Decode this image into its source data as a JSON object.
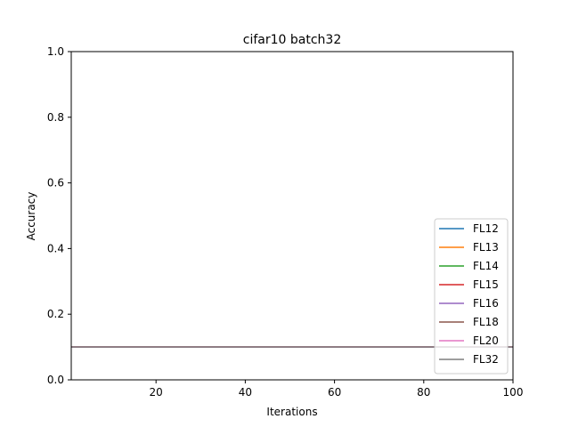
{
  "chart_data": {
    "type": "line",
    "title": "cifar10 batch32",
    "xlabel": "Iterations",
    "ylabel": "Accuracy",
    "xlim": [
      1,
      100
    ],
    "ylim": [
      0.0,
      1.0
    ],
    "xticks": [
      20,
      40,
      60,
      80,
      100
    ],
    "yticks": [
      0.0,
      0.2,
      0.4,
      0.6,
      0.8,
      1.0
    ],
    "xtick_labels": [
      "20",
      "40",
      "60",
      "80",
      "100"
    ],
    "ytick_labels": [
      "0.0",
      "0.2",
      "0.4",
      "0.6",
      "0.8",
      "1.0"
    ],
    "grid": false,
    "legend_position": "lower right",
    "x": [
      1,
      100
    ],
    "series": [
      {
        "name": "FL12",
        "color": "#1f77b4",
        "values": [
          0.1,
          0.1
        ]
      },
      {
        "name": "FL13",
        "color": "#ff7f0e",
        "values": [
          0.1,
          0.1
        ]
      },
      {
        "name": "FL14",
        "color": "#2ca02c",
        "values": [
          0.1,
          0.1
        ]
      },
      {
        "name": "FL15",
        "color": "#d62728",
        "values": [
          0.1,
          0.1
        ]
      },
      {
        "name": "FL16",
        "color": "#9467bd",
        "values": [
          0.1,
          0.1
        ]
      },
      {
        "name": "FL18",
        "color": "#8c564b",
        "values": [
          0.1,
          0.1
        ]
      },
      {
        "name": "FL20",
        "color": "#e377c2",
        "values": [
          0.1,
          0.1
        ]
      },
      {
        "name": "FL32",
        "color": "#7f7f7f",
        "values": [
          0.1,
          0.1
        ]
      }
    ]
  }
}
